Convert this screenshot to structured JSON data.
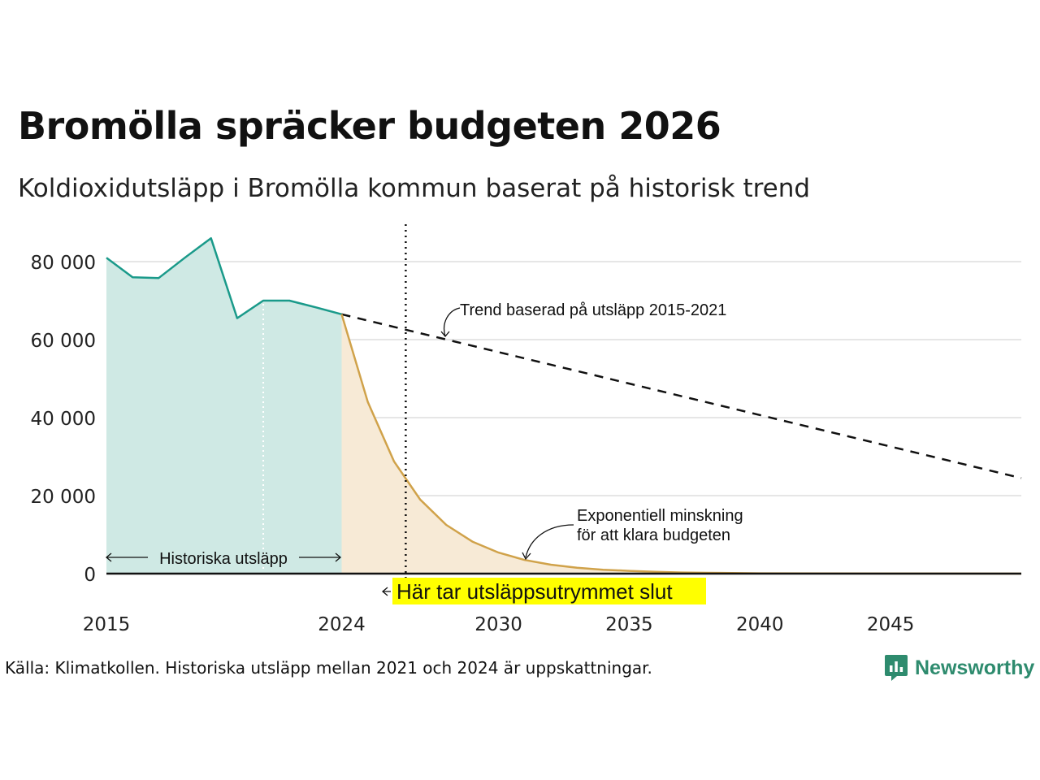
{
  "title": "Bromölla spräcker budgeten 2026",
  "subtitle": "Koldioxidutsläpp i Bromölla kommun baserat på historisk trend",
  "source": "Källa: Klimatkollen. Historiska utsläpp mellan 2021 och 2024 är uppskattningar.",
  "brand": {
    "name": "Newsworthy",
    "icon": "newsworthy-logo-icon"
  },
  "colors": {
    "historical_line": "#1a9a8a",
    "historical_fill": "#cfe9e4",
    "budget_line": "#d0a24a",
    "budget_fill": "#f7ead6",
    "trend_line": "#111111",
    "highlight": "#ffff00",
    "grid": "#dddddd",
    "brand": "#2e8b6e"
  },
  "chart_data": {
    "type": "line",
    "title": "Bromölla spräcker budgeten 2026",
    "subtitle": "Koldioxidutsläpp i Bromölla kommun baserat på historisk trend",
    "xlim": [
      2015,
      2050
    ],
    "ylim": [
      0,
      80000
    ],
    "x_ticks": [
      2015,
      2024,
      2030,
      2035,
      2040,
      2045
    ],
    "x_tick_labels": [
      "2015",
      "2024",
      "2030",
      "2035",
      "2040",
      "2045"
    ],
    "y_ticks": [
      0,
      20000,
      40000,
      60000,
      80000
    ],
    "y_tick_labels": [
      "0",
      "20 000",
      "40 000",
      "60 000",
      "80 000"
    ],
    "grid": "horizontal",
    "series": [
      {
        "name": "Historiska utsläpp",
        "style": "solid-area",
        "x": [
          2015,
          2016,
          2017,
          2018,
          2019,
          2020,
          2021,
          2022,
          2023,
          2024
        ],
        "y": [
          81000,
          76000,
          75800,
          81000,
          86000,
          65500,
          70000,
          70000,
          68300,
          66500
        ]
      },
      {
        "name": "Trend baserad på utsläpp 2015-2021",
        "style": "dashed",
        "x": [
          2024,
          2050
        ],
        "y": [
          66500,
          24500
        ]
      },
      {
        "name": "Exponentiell minskning för att klara budgeten",
        "style": "solid-area",
        "x": [
          2024,
          2025,
          2026,
          2027,
          2028,
          2029,
          2030,
          2031,
          2032,
          2033,
          2034,
          2035,
          2036,
          2037,
          2038,
          2040,
          2045,
          2050
        ],
        "y": [
          66500,
          44000,
          28800,
          19000,
          12500,
          8200,
          5400,
          3500,
          2300,
          1500,
          1000,
          700,
          450,
          300,
          200,
          90,
          20,
          5
        ]
      }
    ],
    "budget_end_year": 2026.45,
    "historical_split_year": 2021,
    "annotations": {
      "historical": "Historiska utsläpp",
      "trend_line1": "Trend baserad på utsläpp 2015-2021",
      "exp_line1": "Exponentiell minskning",
      "exp_line2": "för att klara budgeten",
      "budget_end": "Här tar utsläppsutrymmet slut"
    }
  }
}
